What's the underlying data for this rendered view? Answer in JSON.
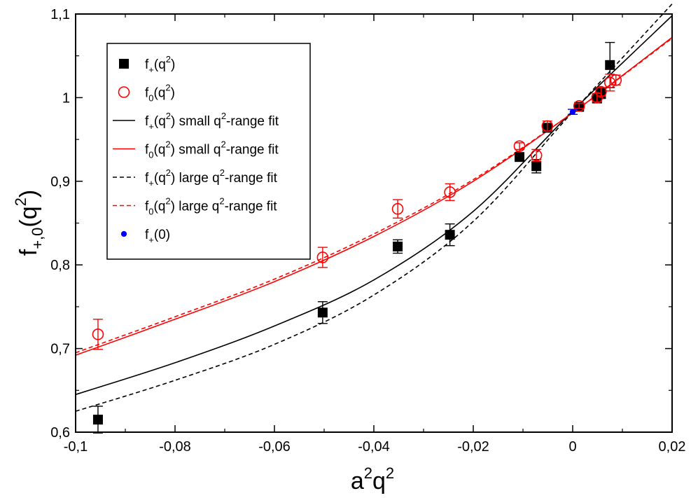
{
  "chart_data": {
    "type": "scatter",
    "xlabel": "a²q²",
    "ylabel": "f+,0(q²)",
    "xlim": [
      -0.1,
      0.02
    ],
    "ylim": [
      0.6,
      1.1
    ],
    "x_ticks": [
      -0.1,
      -0.08,
      -0.06,
      -0.04,
      -0.02,
      0,
      0.02
    ],
    "x_tick_labels": [
      "-0,1",
      "-0,08",
      "-0,06",
      "-0,04",
      "-0,02",
      "0",
      "0,02"
    ],
    "y_ticks": [
      0.6,
      0.7,
      0.8,
      0.9,
      1.0,
      1.1
    ],
    "y_tick_labels": [
      "0,6",
      "0,7",
      "0,8",
      "0,9",
      "1",
      "1,1"
    ],
    "colors": {
      "black": "#000000",
      "red": "#ff0000",
      "blue": "#0000ff"
    },
    "series": [
      {
        "name": "f+(q²)",
        "marker": "filled-square",
        "color": "#000000",
        "points": [
          {
            "x": -0.0955,
            "y": 0.615,
            "err": 0.016
          },
          {
            "x": -0.0503,
            "y": 0.743,
            "err": 0.013
          },
          {
            "x": -0.0352,
            "y": 0.822,
            "err": 0.008
          },
          {
            "x": -0.0247,
            "y": 0.836,
            "err": 0.013
          },
          {
            "x": -0.0107,
            "y": 0.929,
            "err": 0.004
          },
          {
            "x": -0.0073,
            "y": 0.918,
            "err": 0.008
          },
          {
            "x": -0.0051,
            "y": 0.964,
            "err": 0.005
          },
          {
            "x": 0.0013,
            "y": 0.989,
            "err": 0.003
          },
          {
            "x": 0.0049,
            "y": 0.999,
            "err": 0.005
          },
          {
            "x": 0.0057,
            "y": 1.005,
            "err": 0.006
          },
          {
            "x": 0.0075,
            "y": 1.039,
            "err": 0.027
          }
        ]
      },
      {
        "name": "f0(q²)",
        "marker": "open-circle",
        "color": "#ff0000",
        "points": [
          {
            "x": -0.0955,
            "y": 0.717,
            "err": 0.018
          },
          {
            "x": -0.0503,
            "y": 0.809,
            "err": 0.012
          },
          {
            "x": -0.0352,
            "y": 0.867,
            "err": 0.011
          },
          {
            "x": -0.0247,
            "y": 0.887,
            "err": 0.01
          },
          {
            "x": -0.0107,
            "y": 0.942,
            "err": 0.004
          },
          {
            "x": -0.0073,
            "y": 0.931,
            "err": 0.007
          },
          {
            "x": -0.0051,
            "y": 0.966,
            "err": 0.006
          },
          {
            "x": 0.0013,
            "y": 0.99,
            "err": 0.003
          },
          {
            "x": 0.0049,
            "y": 1.0,
            "err": 0.005
          },
          {
            "x": 0.0057,
            "y": 1.007,
            "err": 0.005
          },
          {
            "x": 0.0075,
            "y": 1.018,
            "err": 0.01
          },
          {
            "x": 0.0087,
            "y": 1.021,
            "err": 0.006
          }
        ]
      },
      {
        "name": "f+(q²) small q²-range fit",
        "type": "line",
        "dash": "solid",
        "color": "#000000",
        "x": [
          -0.1,
          -0.08,
          -0.06,
          -0.04,
          -0.02,
          0,
          0.02
        ],
        "y": [
          0.645,
          0.683,
          0.727,
          0.782,
          0.864,
          0.984,
          1.098
        ]
      },
      {
        "name": "f0(q²) small q²-range fit",
        "type": "line",
        "dash": "solid",
        "color": "#ff0000",
        "x": [
          -0.1,
          -0.08,
          -0.06,
          -0.04,
          -0.02,
          0,
          0.02
        ],
        "y": [
          0.692,
          0.735,
          0.78,
          0.834,
          0.9,
          0.982,
          1.072
        ]
      },
      {
        "name": "f+(q²) large q²-range fit",
        "type": "line",
        "dash": "dashed",
        "color": "#000000",
        "x": [
          -0.1,
          -0.08,
          -0.06,
          -0.04,
          -0.02,
          0,
          0.02
        ],
        "y": [
          0.625,
          0.662,
          0.705,
          0.764,
          0.852,
          0.983,
          1.112
        ]
      },
      {
        "name": "f0(q²) large q²-range fit",
        "type": "line",
        "dash": "dashed",
        "color": "#ff0000",
        "x": [
          -0.1,
          -0.08,
          -0.06,
          -0.04,
          -0.02,
          0,
          0.02
        ],
        "y": [
          0.695,
          0.738,
          0.783,
          0.837,
          0.902,
          0.982,
          1.071
        ]
      },
      {
        "name": "f+(0)",
        "marker": "filled-circle",
        "color": "#0000ff",
        "points": [
          {
            "x": 0.0,
            "y": 0.983,
            "err": 0.003
          }
        ]
      }
    ],
    "legend": {
      "position": "top-left",
      "entries": [
        {
          "series": 0,
          "main": "f",
          "sub": "+",
          "open": "(q",
          "sup": "2",
          "close": ")",
          "suffix_pre": "",
          "suffix_sup": "",
          "suffix_post": ""
        },
        {
          "series": 1,
          "main": "f",
          "sub": "0",
          "open": "(q",
          "sup": "2",
          "close": ")",
          "suffix_pre": "",
          "suffix_sup": "",
          "suffix_post": ""
        },
        {
          "series": 2,
          "main": "f",
          "sub": "+",
          "open": "(q",
          "sup": "2",
          "close": ")",
          "suffix_pre": " small q",
          "suffix_sup": "2",
          "suffix_post": "-range fit"
        },
        {
          "series": 3,
          "main": "f",
          "sub": "0",
          "open": "(q",
          "sup": "2",
          "close": ")",
          "suffix_pre": " small q",
          "suffix_sup": "2",
          "suffix_post": "-range fit"
        },
        {
          "series": 4,
          "main": "f",
          "sub": "+",
          "open": "(q",
          "sup": "2",
          "close": ")",
          "suffix_pre": " large q",
          "suffix_sup": "2",
          "suffix_post": "-range fit"
        },
        {
          "series": 5,
          "main": "f",
          "sub": "0",
          "open": "(q",
          "sup": "2",
          "close": ")",
          "suffix_pre": " large q",
          "suffix_sup": "2",
          "suffix_post": "-range fit"
        },
        {
          "series": 6,
          "main": "f",
          "sub": "+",
          "open": "(0)",
          "sup": "",
          "close": "",
          "suffix_pre": "",
          "suffix_sup": "",
          "suffix_post": ""
        }
      ]
    },
    "axis_text": {
      "x": {
        "a": "a",
        "sup1": "2",
        "q": "q",
        "sup2": "2"
      },
      "y": {
        "f": "f",
        "sub": "+,0",
        "open": "(q",
        "sup": "2",
        "close": ")"
      }
    }
  }
}
